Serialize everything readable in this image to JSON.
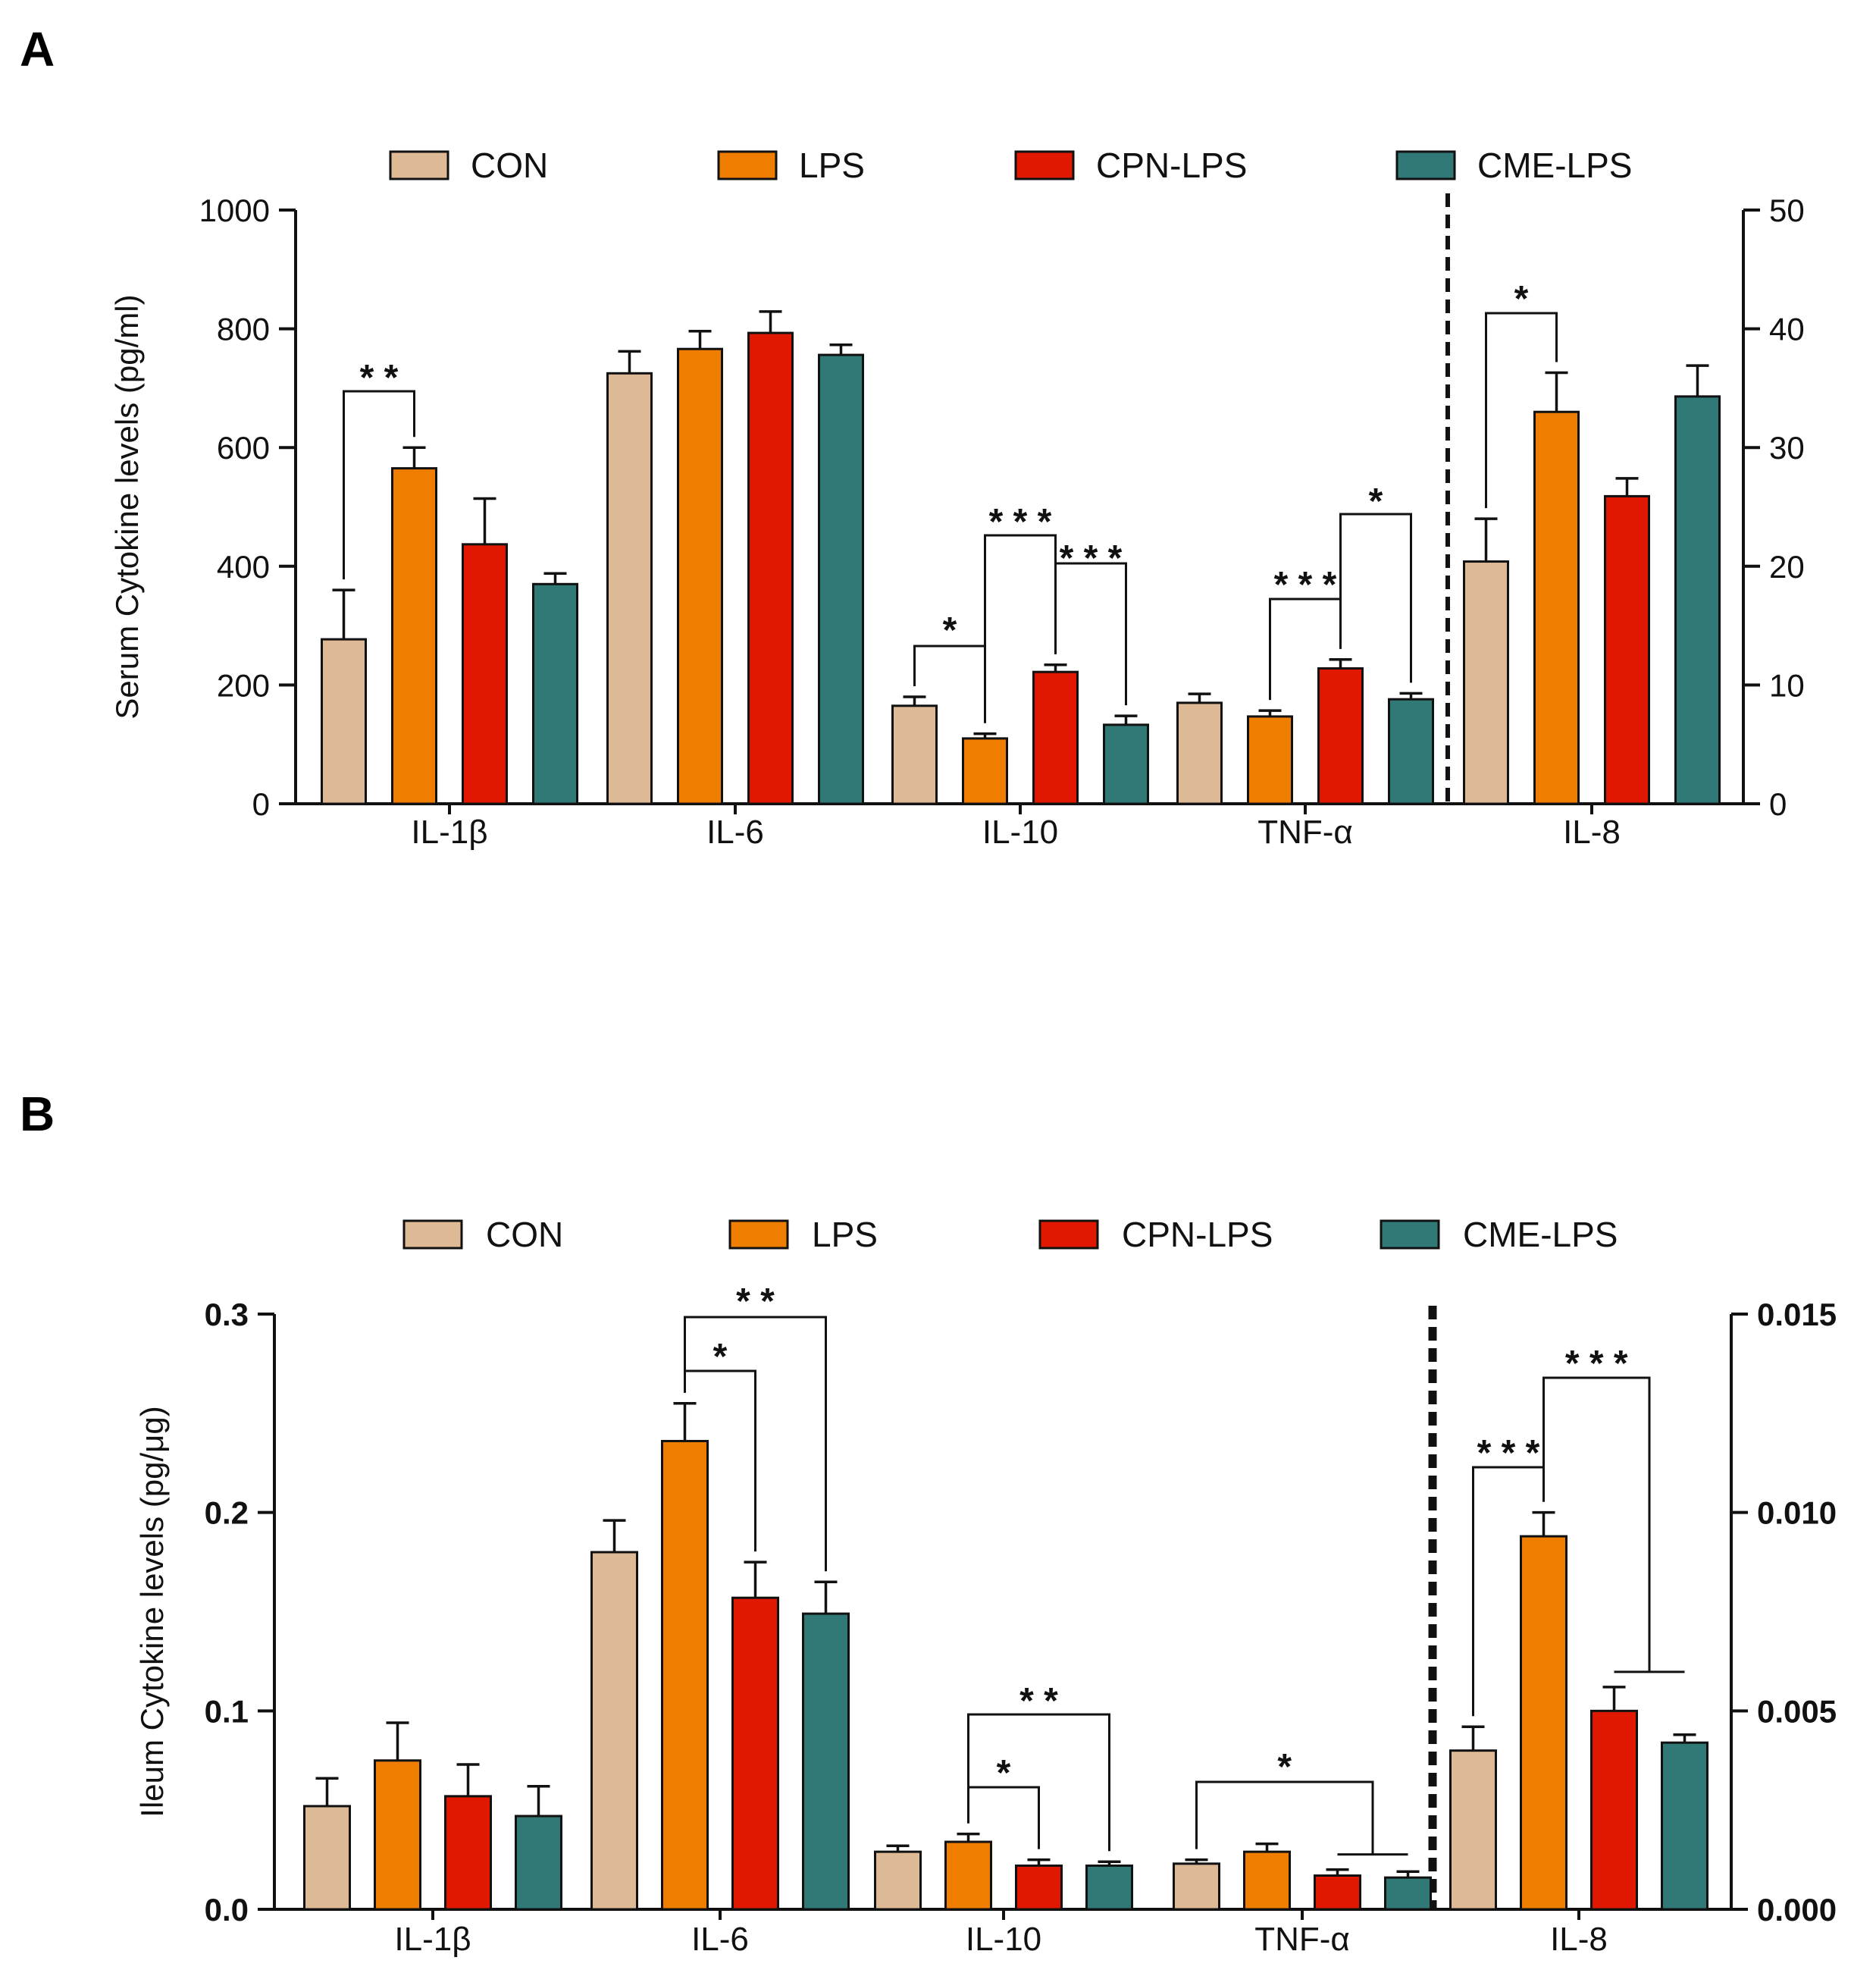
{
  "colors": {
    "CON": "#deb995",
    "LPS": "#ef7d00",
    "CPN-LPS": "#e01800",
    "CME-LPS": "#307977"
  },
  "chart_data": [
    {
      "panel": "A",
      "type": "bar",
      "ylabel": "Serum Cytokine levels (pg/ml)",
      "ylim": [
        0,
        1000
      ],
      "y2lim": [
        0,
        50
      ],
      "yticks": [
        "0",
        "200",
        "400",
        "600",
        "800",
        "1000"
      ],
      "y2ticks": [
        "0",
        "10",
        "20",
        "30",
        "40",
        "50"
      ],
      "legend": [
        "CON",
        "LPS",
        "CPN-LPS",
        "CME-LPS"
      ],
      "legend_position": "top",
      "grid": false,
      "categories": [
        "IL-1β",
        "IL-6",
        "IL-10",
        "TNF-α",
        "IL-8"
      ],
      "secondary_axis_categories": [
        "IL-8"
      ],
      "series": [
        {
          "name": "CON",
          "values": [
            277,
            725,
            165,
            170,
            20.4
          ],
          "errors": [
            83,
            37,
            15,
            15,
            3.6
          ]
        },
        {
          "name": "LPS",
          "values": [
            565,
            766,
            110,
            147,
            33.0
          ],
          "errors": [
            35,
            30,
            8,
            10,
            3.3
          ]
        },
        {
          "name": "CPN-LPS",
          "values": [
            437,
            793,
            222,
            228,
            25.9
          ],
          "errors": [
            77,
            36,
            12,
            15,
            1.5
          ]
        },
        {
          "name": "CME-LPS",
          "values": [
            370,
            756,
            133,
            176,
            34.3
          ],
          "errors": [
            18,
            17,
            15,
            10,
            2.6
          ]
        }
      ],
      "significance": [
        {
          "label": "* *",
          "category": 0,
          "from": 0,
          "to": 1
        },
        {
          "label": "*",
          "category": 2,
          "from": 0,
          "to": 1
        },
        {
          "label": "* * *",
          "category": 2,
          "from": 1,
          "to": 2
        },
        {
          "label": "* * *",
          "category": 2,
          "from": 2,
          "to": 3
        },
        {
          "label": "* * *",
          "category": 3,
          "from": 1,
          "to": 2
        },
        {
          "label": "*",
          "category": 3,
          "from": 2,
          "to": 3
        },
        {
          "label": "*",
          "category": 4,
          "from": 0,
          "to": 1
        }
      ]
    },
    {
      "panel": "B",
      "type": "bar",
      "ylabel": "Ileum Cytokine levels (pg/μg)",
      "ylim": [
        0,
        0.3
      ],
      "y2lim": [
        0,
        0.015
      ],
      "yticks": [
        "0.0",
        "0.1",
        "0.2",
        "0.3"
      ],
      "y2ticks": [
        "0.000",
        "0.005",
        "0.010",
        "0.015"
      ],
      "legend": [
        "CON",
        "LPS",
        "CPN-LPS",
        "CME-LPS"
      ],
      "legend_position": "top",
      "grid": false,
      "categories": [
        "IL-1β",
        "IL-6",
        "IL-10",
        "TNF-α",
        "IL-8"
      ],
      "secondary_axis_categories": [
        "IL-8"
      ],
      "series": [
        {
          "name": "CON",
          "values": [
            0.052,
            0.18,
            0.029,
            0.023,
            0.004
          ],
          "errors": [
            0.014,
            0.016,
            0.003,
            0.002,
            0.0006
          ]
        },
        {
          "name": "LPS",
          "values": [
            0.075,
            0.236,
            0.034,
            0.029,
            0.0094
          ],
          "errors": [
            0.019,
            0.019,
            0.004,
            0.004,
            0.0006
          ]
        },
        {
          "name": "CPN-LPS",
          "values": [
            0.057,
            0.157,
            0.022,
            0.017,
            0.005
          ],
          "errors": [
            0.016,
            0.018,
            0.003,
            0.003,
            0.0006
          ]
        },
        {
          "name": "CME-LPS",
          "values": [
            0.047,
            0.149,
            0.022,
            0.016,
            0.0042
          ],
          "errors": [
            0.015,
            0.016,
            0.002,
            0.003,
            0.0002
          ]
        }
      ],
      "significance": [
        {
          "label": "* *",
          "category": 1,
          "from": 1,
          "to": 3
        },
        {
          "label": "*",
          "category": 1,
          "from": 1,
          "to": 2
        },
        {
          "label": "* *",
          "category": 2,
          "from": 1,
          "to": 3
        },
        {
          "label": "*",
          "category": 2,
          "from": 1,
          "to": 2
        },
        {
          "label": "*",
          "category": 3,
          "from": 0,
          "to": [
            2,
            3
          ]
        },
        {
          "label": "* * *",
          "category": 4,
          "from": 0,
          "to": 1
        },
        {
          "label": "* * *",
          "category": 4,
          "from": 1,
          "to": [
            2,
            3
          ]
        }
      ]
    }
  ]
}
